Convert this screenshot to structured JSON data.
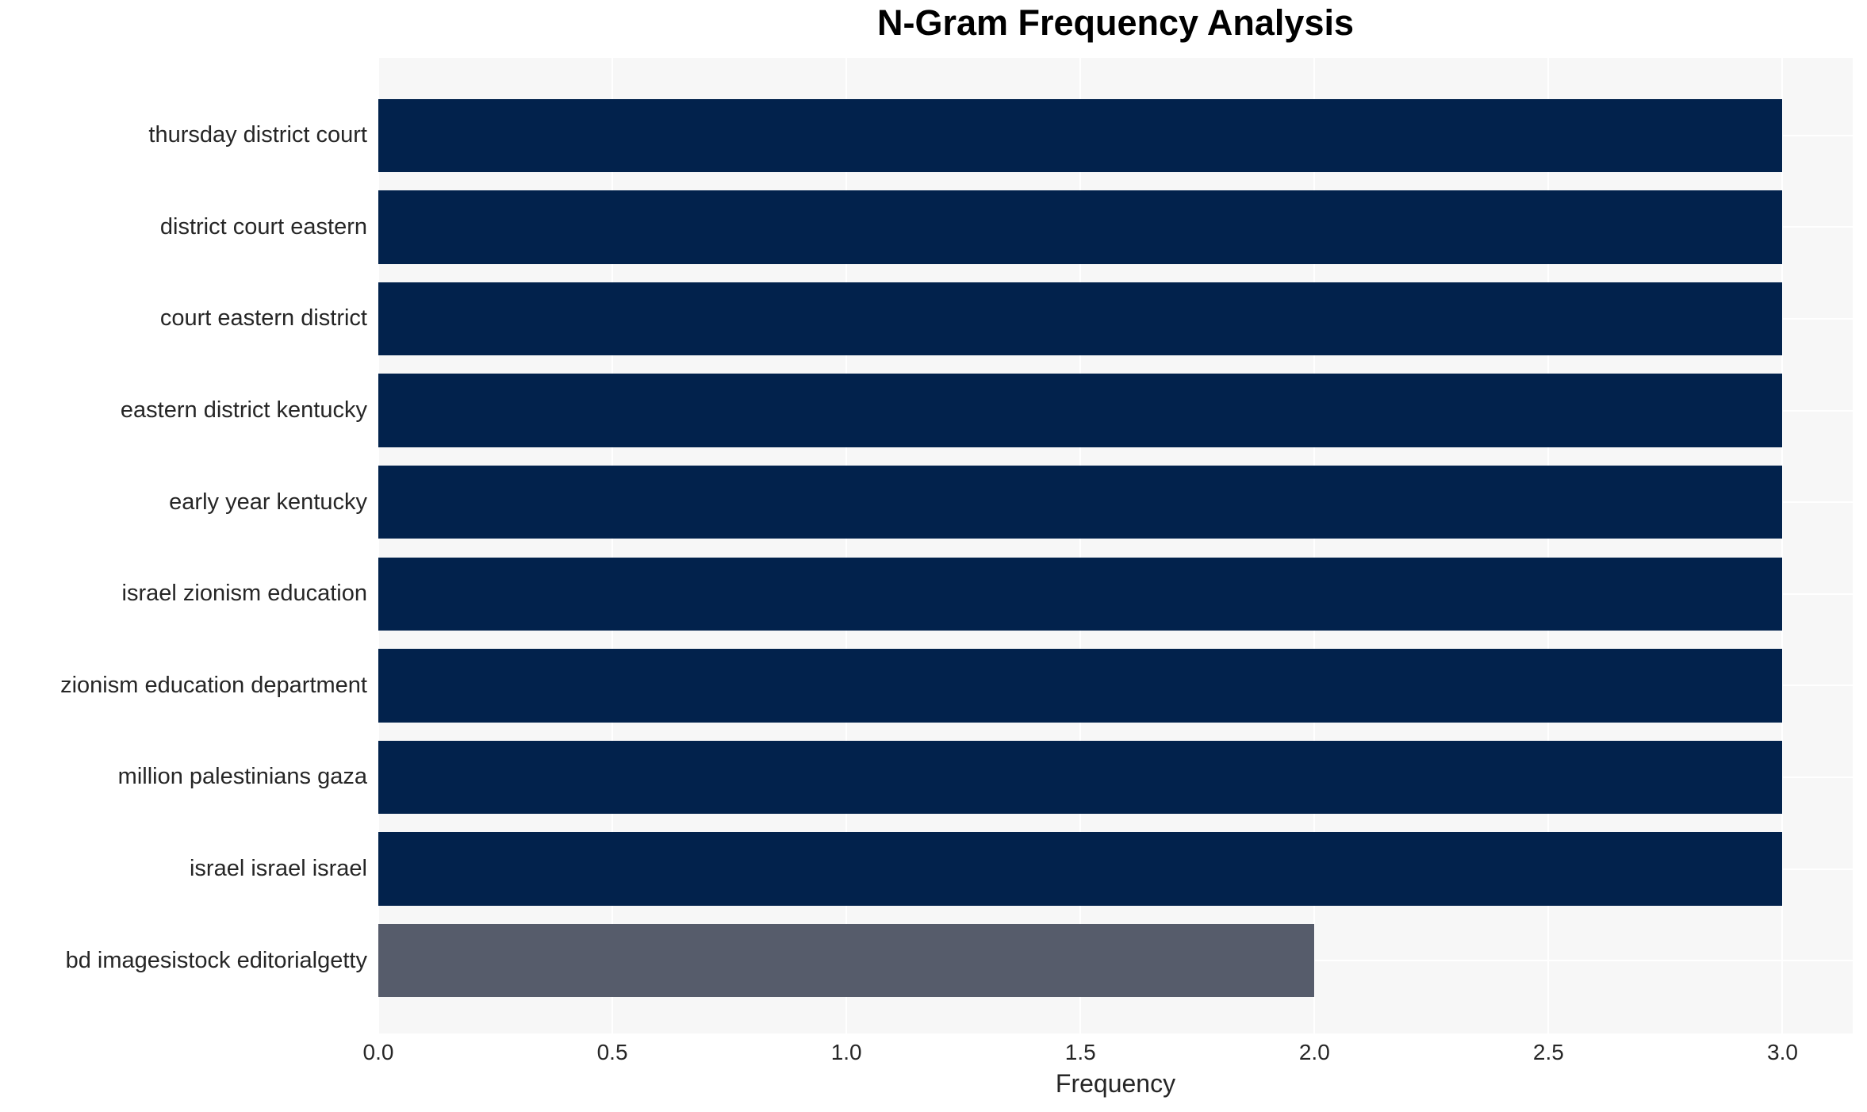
{
  "chart_data": {
    "type": "bar",
    "orientation": "horizontal",
    "title": "N-Gram Frequency Analysis",
    "xlabel": "Frequency",
    "ylabel": "",
    "categories": [
      "thursday district court",
      "district court eastern",
      "court eastern district",
      "eastern district kentucky",
      "early year kentucky",
      "israel zionism education",
      "zionism education department",
      "million palestinians gaza",
      "israel israel israel",
      "bd imagesistock editorialgetty"
    ],
    "values": [
      3,
      3,
      3,
      3,
      3,
      3,
      3,
      3,
      3,
      2
    ],
    "bar_colors": [
      "#02224c",
      "#02224c",
      "#02224c",
      "#02224c",
      "#02224c",
      "#02224c",
      "#02224c",
      "#02224c",
      "#02224c",
      "#565c6b"
    ],
    "xlim": [
      0,
      3.15
    ],
    "xticks": [
      0,
      0.5,
      1,
      1.5,
      2,
      2.5,
      3
    ],
    "xtick_labels": [
      "0.0",
      "0.5",
      "1.0",
      "1.5",
      "2.0",
      "2.5",
      "3.0"
    ],
    "grid": true,
    "legend": false,
    "colors": {
      "bar_primary": "#02224c",
      "bar_secondary": "#565c6b",
      "plot_background": "#f7f7f7",
      "gridline": "#ffffff",
      "tick_text": "#262626",
      "title_text": "#000000"
    }
  }
}
